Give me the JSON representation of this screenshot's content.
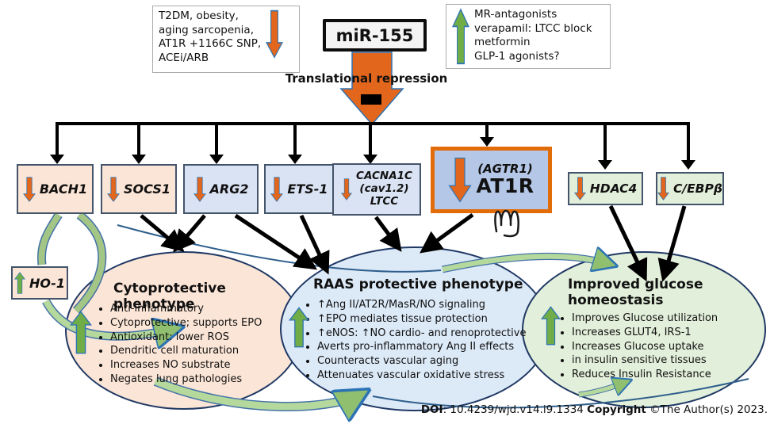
{
  "colors": {
    "orange_arrow": "#E2661C",
    "green_arrow": "#70AD47",
    "arrow_outline_blue": "#2E74B5",
    "peach_fill": "#FBE5D6",
    "blue_fill": "#DAE3F3",
    "at1r_fill": "#B4C7E7",
    "at1r_border": "#E36C0A",
    "green_fill": "#E2EFDA",
    "raas_ellipse_fill": "#DCE9F7",
    "box_border": "#44546A",
    "ellipse_border": "#1F3864",
    "swoosh_green": "#A9D18E"
  },
  "top": {
    "risk_text": "T2DM, obesity,\naging sarcopenia,\nAT1R +1166C SNP,\nACEi/ARB",
    "mir155_label": "miR-155",
    "drug_text": "MR-antagonists\nverapamil: LTCC block\nmetformin\nGLP-1 agonists?",
    "repression_label": "Translational repression"
  },
  "targets": {
    "bach1": "BACH1",
    "socs1": "SOCS1",
    "arg2": "ARG2",
    "ets1": "ETS-1",
    "cacna1c_text": "CACNA1C\n(cav1.2)\nLTCC",
    "agtr1_sub": "(AGTR1)",
    "at1r": "AT1R",
    "hdac4": "HDAC4",
    "cebpb": "C/EBPβ",
    "ho1": "HO-1"
  },
  "ellipses": {
    "cyto": {
      "title": "Cytoprotective phenotype",
      "bullets": [
        "Anti-inflammatory",
        "Cytoprotective; supports EPO",
        "Antioxidant: lower ROS",
        "Dendritic cell maturation",
        "Increases NO substrate",
        "Negates lung pathologies"
      ]
    },
    "raas": {
      "title": "RAAS protective phenotype",
      "bullets": [
        "↑Ang II/AT2R/MasR/NO signaling",
        "↑EPO mediates tissue protection",
        "↑eNOS: ↑NO cardio- and renoprotective",
        "Averts pro-inflammatory Ang II effects",
        "Counteracts vascular aging",
        "Attenuates vascular oxidative stress"
      ]
    },
    "gluc": {
      "title": "Improved glucose homeostasis",
      "bullets": [
        "Improves Glucose utilization",
        "Increases GLUT4, IRS-1",
        "Increases Glucose uptake",
        "in insulin sensitive tissues",
        "Reduces Insulin Resistance"
      ]
    }
  },
  "caption": {
    "doi_label": "DOI",
    "doi_text": ": 10.4239/wjd.v14.i9.1334 ",
    "copyright_label": "Copyright",
    "copyright_text": " ©The Author(s) 2023."
  }
}
